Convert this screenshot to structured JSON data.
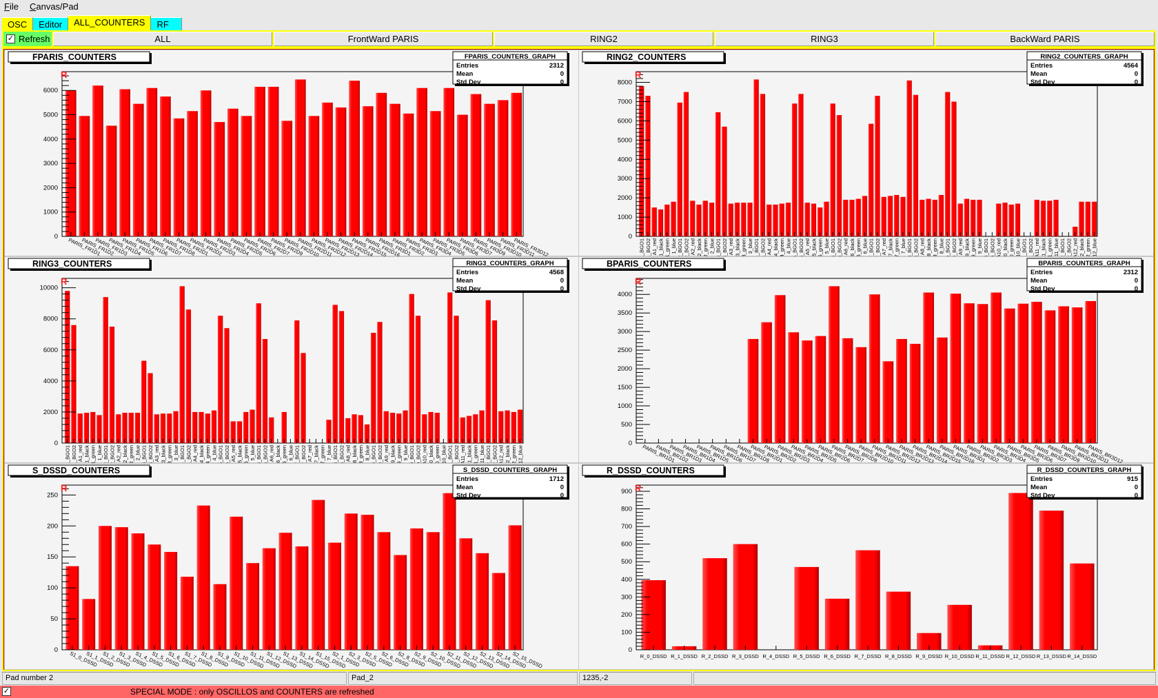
{
  "menu": [
    "File",
    "Canvas/Pad"
  ],
  "tabs": [
    {
      "label": "OSC",
      "color": "#ffff00"
    },
    {
      "label": "Editor",
      "color": "#00ffff"
    },
    {
      "label": "ALL_COUNTERS",
      "color": "#ffff00",
      "selected": true
    },
    {
      "label": "RF",
      "color": "#00ffff"
    }
  ],
  "toolbar": {
    "refresh_label": "Refresh",
    "refresh_checked": true,
    "buttons": [
      "ALL",
      "FrontWard PARIS",
      "RING2",
      "RING3",
      "BackWard PARIS"
    ]
  },
  "status": {
    "pad": "Pad number 2",
    "name": "Pad_2",
    "coords": "1235,-2",
    "extra": ""
  },
  "special_mode": {
    "checked": true,
    "text": "SPECIAL MODE : only OSCILLOS and COUNTERS are refreshed"
  },
  "colors": {
    "bar": "#ff0000",
    "canvas_border": "#ffff00",
    "special_bar": "#ff6666"
  },
  "chart_data": [
    {
      "type": "bar",
      "title": "FPARIS_COUNTERS",
      "marker": "R",
      "stats": {
        "title": "FPARIS_COUNTERS_GRAPH",
        "Entries": "2312",
        "Mean": "0",
        "Std Dev": "0"
      },
      "ylim": [
        0,
        6772
      ],
      "ytick_step": 1000,
      "label_rotation": 30,
      "categories": [
        "PARIS_FR1D1",
        "PARIS_FR1D2",
        "PARIS_FR1D3",
        "PARIS_FR1D4",
        "PARIS_FR1D5",
        "PARIS_FR1D6",
        "PARIS_FR1D7",
        "PARIS_FR1D8",
        "PARIS_FR2D1",
        "PARIS_FR2D2",
        "PARIS_FR2D3",
        "PARIS_FR2D4",
        "PARIS_FR2D5",
        "PARIS_FR2D6",
        "PARIS_FR2D7",
        "PARIS_FR2D9",
        "PARIS_FR2D10",
        "PARIS_FR2D11",
        "PARIS_FR2D12",
        "PARIS_FR2D13",
        "PARIS_FR2D14",
        "PARIS_FR2D15",
        "PARIS_FR2D16",
        "PARIS_FR3D1",
        "PARIS_FR3D2",
        "PARIS_FR3D3",
        "PARIS_FR3D4",
        "PARIS_FR3D5",
        "PARIS_FR3D6",
        "PARIS_FR3D7",
        "PARIS_FR3D9",
        "PARIS_FR3D10",
        "PARIS_FR3D11",
        "PARIS_FR3D12"
      ],
      "values": [
        6000,
        4950,
        6200,
        4550,
        6050,
        5450,
        6100,
        5750,
        4850,
        5150,
        6000,
        4700,
        5250,
        4950,
        6150,
        6150,
        4750,
        6450,
        4950,
        5500,
        5300,
        6400,
        5350,
        5900,
        5450,
        5050,
        6100,
        5150,
        6100,
        5000,
        5850,
        5450,
        5600,
        5900
      ]
    },
    {
      "type": "bar",
      "title": "RING2_COUNTERS",
      "marker": "R",
      "stats": {
        "title": "RING2_COUNTERS_GRAPH",
        "Entries": "4564",
        "Mean": "0",
        "Std Dev": "0"
      },
      "ylim": [
        0,
        8557
      ],
      "ytick_step": 1000,
      "label_rotation": 90,
      "categories": [
        "1_BGO1",
        "1_BGO2",
        "A1_red",
        "1_black",
        "1_green",
        "1_blue",
        "2_BGO1",
        "2_BGO2",
        "A2_red",
        "2_black",
        "2_green",
        "2_blue",
        "3_BGO1",
        "3_BGO2",
        "A3_red",
        "3_black",
        "3_green",
        "3_blue",
        "4_BGO1",
        "4_BGO2",
        "A4_red",
        "4_black",
        "4_green",
        "4_blue",
        "5_BGO1",
        "5_BGO2",
        "A5_red",
        "5_black",
        "5_green",
        "5_blue",
        "6_BGO1",
        "6_BGO2",
        "A6_red",
        "6_black",
        "6_green",
        "6_blue",
        "7_BGO1",
        "7_BGO2",
        "A7_red",
        "7_black",
        "7_green",
        "7_blue",
        "8_BGO1",
        "8_BGO2",
        "A8_red",
        "8_black",
        "8_green",
        "8_blue",
        "9_BGO1",
        "9_BGO2",
        "A9_red",
        "9_black",
        "9_green",
        "9_blue",
        "10_BGO1",
        "10_BGO2",
        "A10_red",
        "10_black",
        "10_green",
        "10_blue",
        "11_BGO1",
        "11_BGO2",
        "A11_red",
        "11_black",
        "11_green",
        "11_blue",
        "12_BGO1",
        "12_BGO2",
        "A12_red",
        "12_black",
        "12_green",
        "12_blue"
      ],
      "values": [
        7800,
        7300,
        1500,
        1400,
        1650,
        1800,
        6950,
        7500,
        1850,
        1650,
        1850,
        1750,
        6450,
        5700,
        1700,
        1750,
        1750,
        1750,
        8150,
        7400,
        1650,
        1650,
        1700,
        1750,
        6900,
        7400,
        1750,
        1700,
        1500,
        1800,
        6900,
        6300,
        1900,
        1900,
        1950,
        2100,
        5850,
        7300,
        2050,
        2100,
        2150,
        2050,
        8100,
        7350,
        1900,
        1950,
        1900,
        2150,
        7500,
        7000,
        1700,
        1950,
        1900,
        1900,
        0,
        0,
        1700,
        1750,
        1650,
        1700,
        0,
        0,
        1900,
        1850,
        1850,
        1900,
        0,
        0,
        500,
        1800,
        1800,
        1800
      ]
    },
    {
      "type": "bar",
      "title": "RING3_COUNTERS",
      "marker": "R",
      "stats": {
        "title": "RING3_COUNTERS_GRAPH",
        "Entries": "4568",
        "Mean": "0",
        "Std Dev": "0"
      },
      "ylim": [
        0,
        10605
      ],
      "ytick_step": 2000,
      "label_rotation": 90,
      "categories": [
        "1_BGO1",
        "1_BGO2",
        "A1_red",
        "1_black",
        "1_green",
        "1_blue",
        "2_BGO1",
        "2_BGO2",
        "A2_red",
        "2_black",
        "2_green",
        "2_blue",
        "3_BGO1",
        "3_BGO2",
        "A3_red",
        "3_black",
        "3_green",
        "3_blue",
        "4_BGO1",
        "4_BGO2",
        "A4_red",
        "4_black",
        "4_green",
        "4_blue",
        "5_BGO1",
        "5_BGO2",
        "A5_red",
        "5_black",
        "5_green",
        "5_blue",
        "6_BGO1",
        "6_BGO2",
        "A6_red",
        "6_black",
        "6_green",
        "6_blue",
        "7_BGO1",
        "7_BGO2",
        "A7_red",
        "7_black",
        "7_green",
        "7_blue",
        "8_BGO1",
        "8_BGO2",
        "A8_red",
        "8_black",
        "8_green",
        "8_blue",
        "9_BGO1",
        "9_BGO2",
        "A9_red",
        "9_black",
        "9_green",
        "9_blue",
        "10_BGO1",
        "10_BGO2",
        "A10_red",
        "10_black",
        "10_green",
        "10_blue",
        "11_BGO1",
        "11_BGO2",
        "A11_red",
        "11_black",
        "11_green",
        "11_blue",
        "12_BGO1",
        "12_BGO2",
        "A12_red",
        "12_black",
        "12_green",
        "12_blue"
      ],
      "values": [
        9800,
        7600,
        1900,
        1950,
        2000,
        1800,
        9400,
        7500,
        1850,
        1950,
        1950,
        1950,
        5300,
        4500,
        1850,
        1900,
        1900,
        2050,
        10100,
        8600,
        2000,
        2000,
        1900,
        2100,
        8200,
        7400,
        1400,
        1400,
        2000,
        2150,
        9000,
        6700,
        1650,
        0,
        2000,
        0,
        7900,
        5800,
        0,
        0,
        0,
        1500,
        8900,
        8500,
        1600,
        1850,
        1800,
        1200,
        7100,
        7800,
        2050,
        1950,
        1900,
        2100,
        9600,
        8200,
        1850,
        2000,
        1950,
        0,
        9700,
        8200,
        1650,
        1750,
        1850,
        2100,
        9200,
        7900,
        2050,
        2100,
        2000,
        2150
      ]
    },
    {
      "type": "bar",
      "title": "BPARIS_COUNTERS",
      "marker": "R",
      "stats": {
        "title": "BPARIS_COUNTERS_GRAPH",
        "Entries": "2312",
        "Mean": "0",
        "Std Dev": "0"
      },
      "ylim": [
        0,
        4431
      ],
      "ytick_step": 500,
      "label_rotation": 30,
      "categories": [
        "PARIS_BR1D1",
        "PARIS_BR1D2",
        "PARIS_BR1D3",
        "PARIS_BR1D4",
        "PARIS_BR1D5",
        "PARIS_BR1D6",
        "PARIS_BR1D7",
        "PARIS_BR1D8",
        "PARIS_BR2D1",
        "PARIS_BR2D2",
        "PARIS_BR2D3",
        "PARIS_BR2D4",
        "PARIS_BR2D5",
        "PARIS_BR2D6",
        "PARIS_BR2D7",
        "PARIS_BR2D9",
        "PARIS_BR2D10",
        "PARIS_BR2D11",
        "PARIS_BR2D12",
        "PARIS_BR2D13",
        "PARIS_BR2D14",
        "PARIS_BR2D15",
        "PARIS_BR2D16",
        "PARIS_BR3D1",
        "PARIS_BR3D2",
        "PARIS_BR3D3",
        "PARIS_BR3D4",
        "PARIS_BR3D5",
        "PARIS_BR3D6",
        "PARIS_BR3D7",
        "PARIS_BR3D9",
        "PARIS_BR3D10",
        "PARIS_BR3D11",
        "PARIS_BR3D12"
      ],
      "values": [
        0,
        0,
        0,
        0,
        0,
        0,
        0,
        0,
        2800,
        3250,
        3980,
        2980,
        2760,
        2880,
        4220,
        2820,
        2580,
        4000,
        2200,
        2800,
        2670,
        4050,
        2840,
        4020,
        3760,
        3740,
        4050,
        3620,
        3750,
        3800,
        3570,
        3680,
        3650,
        3820
      ]
    },
    {
      "type": "bar",
      "title": "S_DSSD_COUNTERS",
      "marker": "R",
      "stats": {
        "title": "S_DSSD_COUNTERS_GRAPH",
        "Entries": "1712",
        "Mean": "0",
        "Std Dev": "0"
      },
      "ylim": [
        0,
        266
      ],
      "ytick_step": 50,
      "label_rotation": 30,
      "categories": [
        "S1_0_DSSD",
        "S1_1_DSSD",
        "S1_2_DSSD",
        "S1_3_DSSD",
        "S1_4_DSSD",
        "S1_5_DSSD",
        "S1_6_DSSD",
        "S1_7_DSSD",
        "S1_8_DSSD",
        "S1_9_DSSD",
        "S1_10_DSSD",
        "S1_11_DSSD",
        "S1_12_DSSD",
        "S1_13_DSSD",
        "S1_14_DSSD",
        "S1_15_DSSD",
        "S2_1_DSSD",
        "S2_3_DSSD",
        "S2_5_DSSD",
        "S2_6_DSSD",
        "S2_8_DSSD",
        "S2_9_DSSD",
        "S2_10_DSSD",
        "S2_11_DSSD",
        "S2_12_DSSD",
        "S2_13_DSSD",
        "S2_14_DSSD",
        "S2_15_DSSD"
      ],
      "values": [
        135,
        82,
        200,
        198,
        188,
        170,
        158,
        118,
        233,
        106,
        215,
        140,
        164,
        189,
        167,
        242,
        173,
        220,
        218,
        190,
        153,
        196,
        190,
        253,
        180,
        156,
        124,
        201
      ]
    },
    {
      "type": "bar",
      "title": "R_DSSD_COUNTERS",
      "marker": "R",
      "stats": {
        "title": "R_DSSD_COUNTERS_GRAPH",
        "Entries": "915",
        "Mean": "0",
        "Std Dev": "0"
      },
      "ylim": [
        0,
        935
      ],
      "ytick_step": 100,
      "label_rotation": 0,
      "categories": [
        "R_0_DSSD",
        "R_1_DSSD",
        "R_2_DSSD",
        "R_3_DSSD",
        "R_4_DSSD",
        "R_5_DSSD",
        "R_6_DSSD",
        "R_7_DSSD",
        "R_8_DSSD",
        "R_9_DSSD",
        "R_10_DSSD",
        "R_11_DSSD",
        "R_12_DSSD",
        "R_13_DSSD",
        "R_14_DSSD"
      ],
      "values": [
        395,
        20,
        520,
        600,
        0,
        470,
        290,
        565,
        330,
        95,
        255,
        25,
        890,
        790,
        490
      ]
    }
  ]
}
